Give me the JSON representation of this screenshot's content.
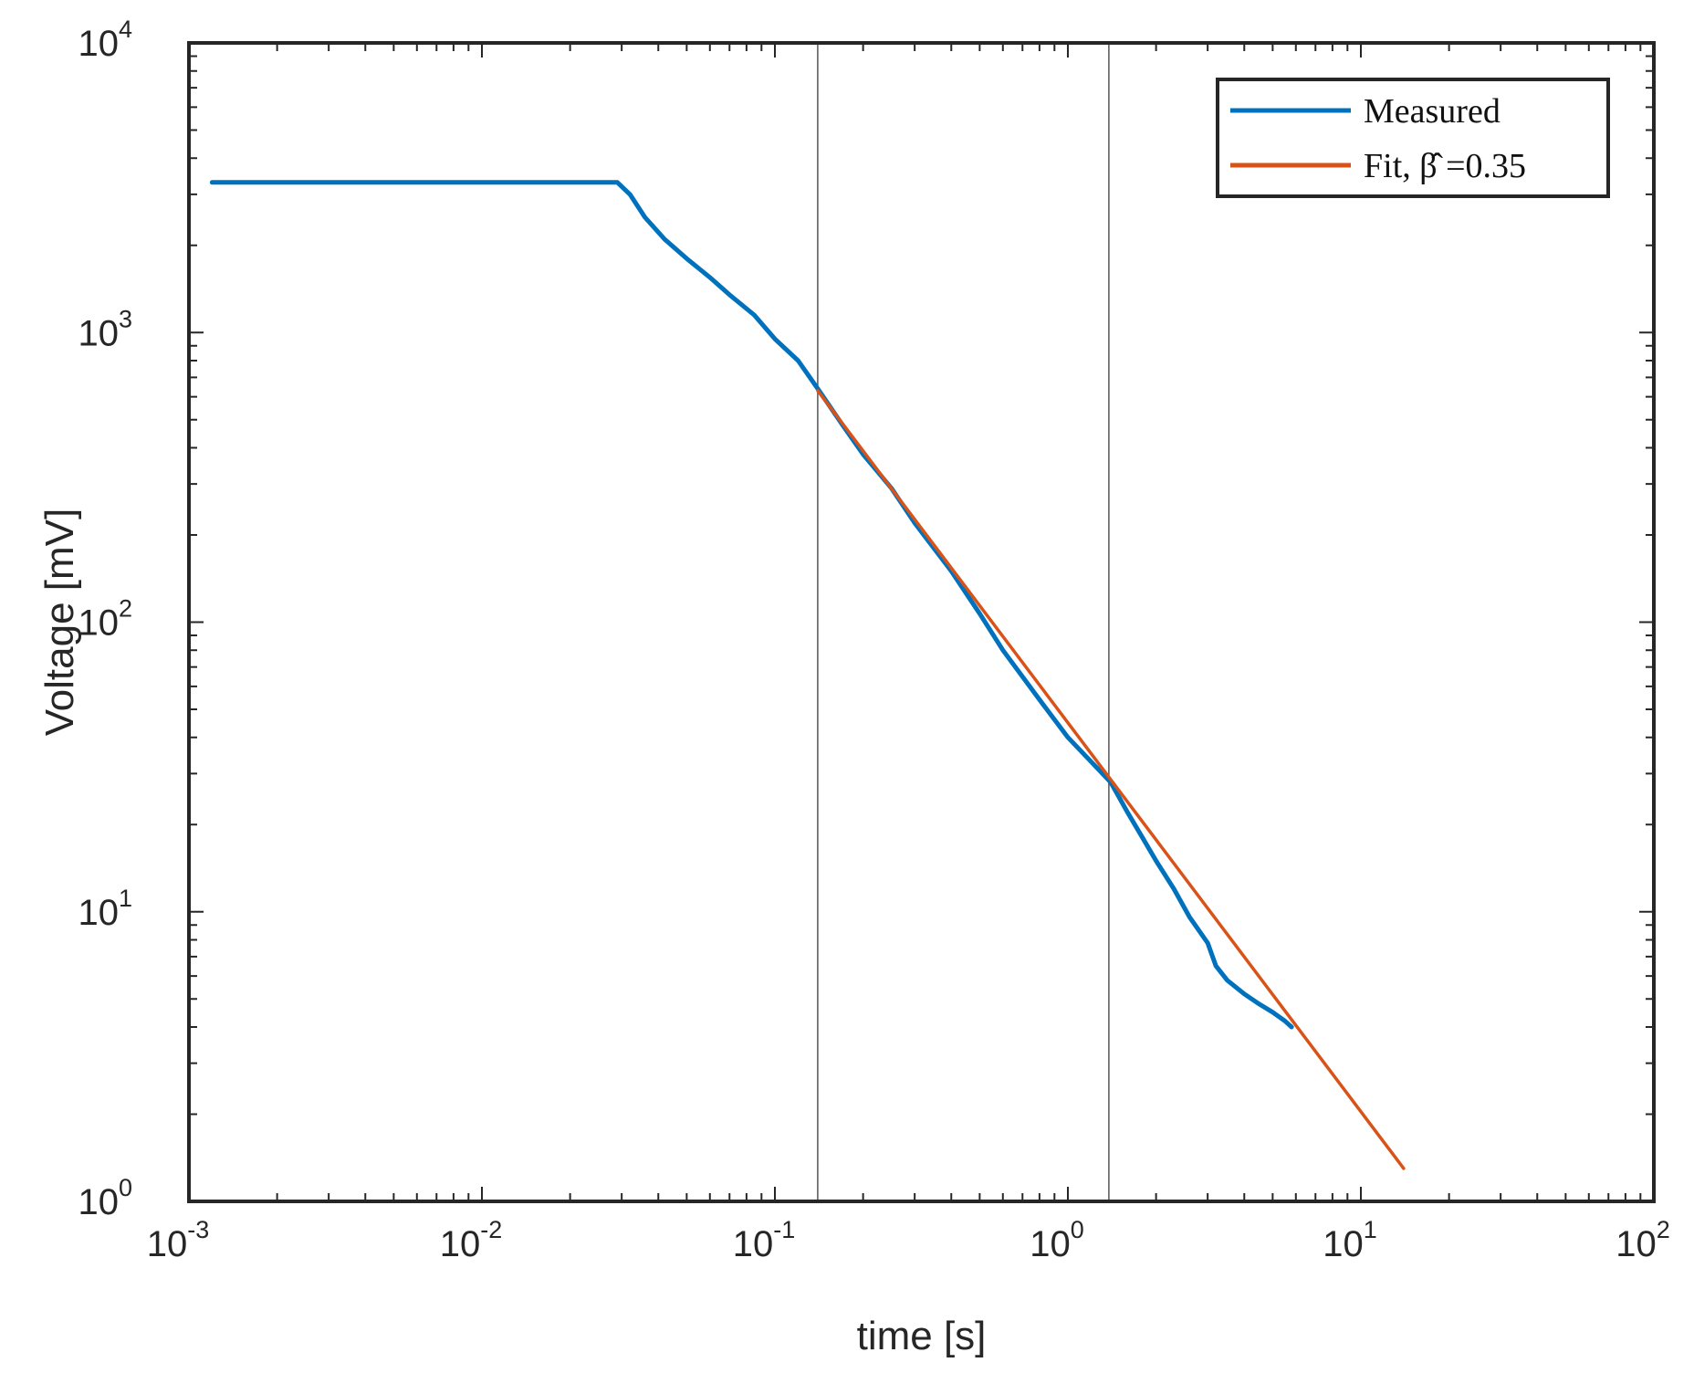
{
  "chart_data": {
    "type": "line",
    "xscale": "log",
    "yscale": "log",
    "xlabel": "time [s]",
    "ylabel": "Voltage [mV]",
    "xlim": [
      0.001,
      100
    ],
    "ylim": [
      1,
      10000
    ],
    "x_ticks": [
      {
        "base": "10",
        "exp": "-3"
      },
      {
        "base": "10",
        "exp": "-2"
      },
      {
        "base": "10",
        "exp": "-1"
      },
      {
        "base": "10",
        "exp": "0"
      },
      {
        "base": "10",
        "exp": "1"
      },
      {
        "base": "10",
        "exp": "2"
      }
    ],
    "y_ticks": [
      {
        "base": "10",
        "exp": "0"
      },
      {
        "base": "10",
        "exp": "1"
      },
      {
        "base": "10",
        "exp": "2"
      },
      {
        "base": "10",
        "exp": "3"
      },
      {
        "base": "10",
        "exp": "4"
      }
    ],
    "vertical_lines": [
      0.14,
      1.38
    ],
    "legend": {
      "location": "top-right",
      "entries": [
        {
          "label": "Measured",
          "color": "#0072BD"
        },
        {
          "label": "Fit, β̂ =0.35",
          "color": "#D95319"
        }
      ]
    },
    "series": [
      {
        "name": "Measured",
        "color": "#0072BD",
        "x": [
          0.0012,
          0.005,
          0.01,
          0.02,
          0.027,
          0.029,
          0.032,
          0.036,
          0.042,
          0.05,
          0.06,
          0.07,
          0.085,
          0.1,
          0.12,
          0.14,
          0.17,
          0.2,
          0.25,
          0.3,
          0.4,
          0.5,
          0.6,
          0.8,
          1.0,
          1.2,
          1.4,
          1.6,
          1.8,
          2.0,
          2.3,
          2.6,
          3.0,
          3.2,
          3.5,
          4.0,
          4.5,
          5.0,
          5.5,
          5.8
        ],
        "y": [
          3300,
          3300,
          3300,
          3300,
          3300,
          3300,
          3000,
          2500,
          2100,
          1800,
          1550,
          1350,
          1150,
          950,
          800,
          640,
          480,
          380,
          290,
          220,
          150,
          107,
          80,
          54,
          40,
          33,
          28,
          22,
          18,
          15,
          12,
          9.6,
          7.8,
          6.5,
          5.8,
          5.2,
          4.8,
          4.5,
          4.2,
          4.0
        ]
      },
      {
        "name": "Fit",
        "color": "#D95319",
        "x": [
          0.14,
          14
        ],
        "y": [
          630,
          1.3
        ]
      }
    ]
  }
}
